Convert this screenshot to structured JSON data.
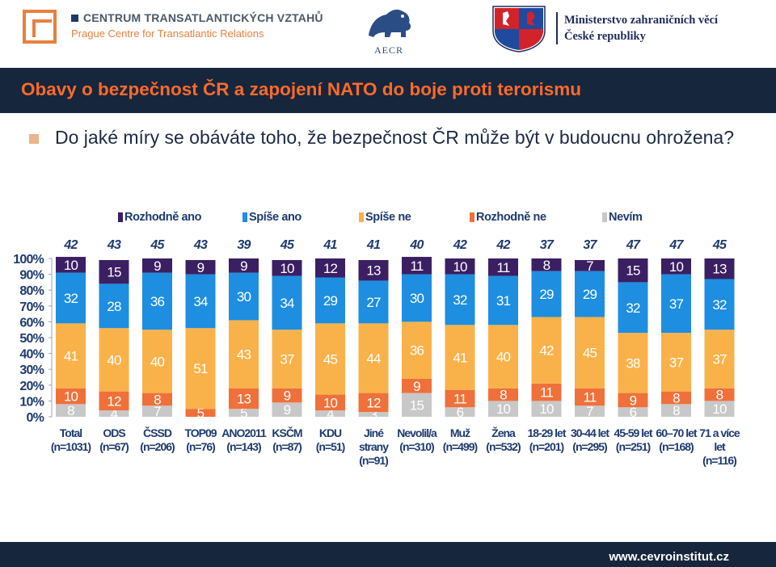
{
  "header": {
    "ctv_line1": "CENTRUM TRANSATLANTICKÝCH VZTAHŮ",
    "ctv_line2": "Prague Centre for Transatlantic Relations",
    "aecr_label": "AECR",
    "mzv_line1": "Ministerstvo zahraničních věcí",
    "mzv_line2": "České republiky"
  },
  "slide": {
    "title": "Obavy o bezpečnost ČR a zapojení NATO do boje proti terorismu",
    "question": "Do jaké míry se obáváte toho, že bezpečnost ČR může být v budoucnu ohrožena?",
    "footer_url": "www.cevroinstitut.cz"
  },
  "colors": {
    "band": "#16263c",
    "title": "#ff6a2a",
    "rozhodne_ano": "#3b1f63",
    "spise_ano": "#1e8ee0",
    "spise_ne": "#f9b24a",
    "rozhodne_ne": "#f0703a",
    "nevim": "#c8c8c8"
  },
  "chart_data": {
    "type": "stacked-bar",
    "title": "",
    "ylabel": "",
    "ylim": [
      0,
      100
    ],
    "y_ticks": [
      "0%",
      "10%",
      "20%",
      "30%",
      "40%",
      "50%",
      "60%",
      "70%",
      "80%",
      "90%",
      "100%"
    ],
    "categories": [
      "Total\n(n=1031)",
      "ODS\n(n=67)",
      "ČSSD\n(n=206)",
      "TOP09\n(n=76)",
      "ANO2011\n(n=143)",
      "KSČM\n(n=87)",
      "KDU\n(n=51)",
      "Jiné\nstrany\n(n=91)",
      "Nevolil/a\n(n=310)",
      "Muž\n(n=499)",
      "Žena\n(n=532)",
      "18-29 let\n(n=201)",
      "30-44 let\n(n=295)",
      "45-59 let\n(n=251)",
      "60–70 let\n(n=168)",
      "71 a více\nlet\n(n=116)"
    ],
    "totals_label": [
      42,
      43,
      45,
      43,
      39,
      45,
      41,
      41,
      40,
      42,
      42,
      37,
      37,
      47,
      47,
      45
    ],
    "series": [
      {
        "name": "Nevím",
        "color": "#c8c8c8",
        "values": [
          8,
          4,
          7,
          0,
          5,
          9,
          4,
          3,
          15,
          6,
          10,
          10,
          7,
          6,
          8,
          10
        ]
      },
      {
        "name": "Rozhodně ne",
        "color": "#f0703a",
        "values": [
          10,
          12,
          8,
          5,
          13,
          9,
          10,
          12,
          9,
          11,
          8,
          11,
          11,
          9,
          8,
          8
        ]
      },
      {
        "name": "Spíše ne",
        "color": "#f9b24a",
        "values": [
          41,
          40,
          40,
          51,
          43,
          37,
          45,
          44,
          36,
          41,
          40,
          42,
          45,
          38,
          37,
          37
        ]
      },
      {
        "name": "Spíše ano",
        "color": "#1e8ee0",
        "values": [
          32,
          28,
          36,
          34,
          30,
          34,
          29,
          27,
          30,
          32,
          31,
          29,
          29,
          32,
          37,
          32
        ]
      },
      {
        "name": "Rozhodně ano",
        "color": "#3b1f63",
        "values": [
          10,
          15,
          9,
          9,
          9,
          10,
          12,
          13,
          11,
          10,
          11,
          8,
          7,
          15,
          10,
          13
        ]
      }
    ],
    "legend": [
      "Rozhodně ano",
      "Spíše ano",
      "Spíše ne",
      "Rozhodně ne",
      "Nevím"
    ],
    "legend_position": "top"
  }
}
